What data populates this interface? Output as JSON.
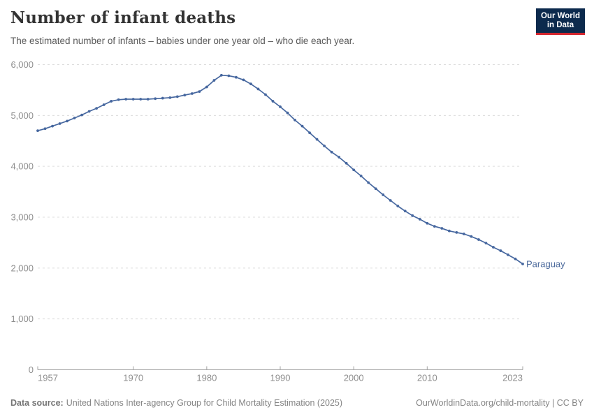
{
  "header": {
    "title": "Number of infant deaths",
    "subtitle": "The estimated number of infants – babies under one year old – who die each year.",
    "logo": {
      "line1": "Our World",
      "line2": "in Data"
    }
  },
  "footer": {
    "source_label": "Data source:",
    "source_text": "United Nations Inter-agency Group for Child Mortality Estimation (2025)",
    "link_text": "OurWorldinData.org/child-mortality | CC BY"
  },
  "colors": {
    "line": "#46679f",
    "entity_label": "#4c6a9c",
    "grid": "#dcdcdc",
    "axis": "#a3a3a3",
    "tick_label": "#8e8e8e",
    "title_text": "#333333",
    "subtitle_text": "#595959",
    "logo_bg": "#0c2a4d",
    "logo_accent": "#d4262e"
  },
  "chart_data": {
    "type": "line",
    "title": "Number of infant deaths",
    "subtitle": "The estimated number of infants – babies under one year old – who die each year.",
    "entity": "Paraguay",
    "xlabel": "",
    "ylabel": "",
    "xlim": [
      1957,
      2023
    ],
    "ylim": [
      0,
      6000
    ],
    "xticks": [
      1957,
      1970,
      1980,
      1990,
      2000,
      2010,
      2023
    ],
    "yticks": [
      0,
      1000,
      2000,
      3000,
      4000,
      5000,
      6000
    ],
    "grid": "horizontal-dashed",
    "legend_position": "end-of-line-label",
    "x": [
      1957,
      1958,
      1959,
      1960,
      1961,
      1962,
      1963,
      1964,
      1965,
      1966,
      1967,
      1968,
      1969,
      1970,
      1971,
      1972,
      1973,
      1974,
      1975,
      1976,
      1977,
      1978,
      1979,
      1980,
      1981,
      1982,
      1983,
      1984,
      1985,
      1986,
      1987,
      1988,
      1989,
      1990,
      1991,
      1992,
      1993,
      1994,
      1995,
      1996,
      1997,
      1998,
      1999,
      2000,
      2001,
      2002,
      2003,
      2004,
      2005,
      2006,
      2007,
      2008,
      2009,
      2010,
      2011,
      2012,
      2013,
      2014,
      2015,
      2016,
      2017,
      2018,
      2019,
      2020,
      2021,
      2022,
      2023
    ],
    "values": [
      4700,
      4740,
      4790,
      4840,
      4890,
      4950,
      5010,
      5080,
      5140,
      5210,
      5280,
      5310,
      5320,
      5320,
      5320,
      5320,
      5330,
      5340,
      5350,
      5370,
      5400,
      5430,
      5470,
      5560,
      5690,
      5790,
      5780,
      5750,
      5700,
      5620,
      5520,
      5410,
      5280,
      5170,
      5050,
      4910,
      4790,
      4660,
      4530,
      4400,
      4280,
      4180,
      4060,
      3930,
      3810,
      3680,
      3560,
      3440,
      3330,
      3220,
      3120,
      3030,
      2960,
      2880,
      2820,
      2780,
      2730,
      2700,
      2670,
      2620,
      2560,
      2490,
      2410,
      2340,
      2260,
      2180,
      2080
    ]
  }
}
